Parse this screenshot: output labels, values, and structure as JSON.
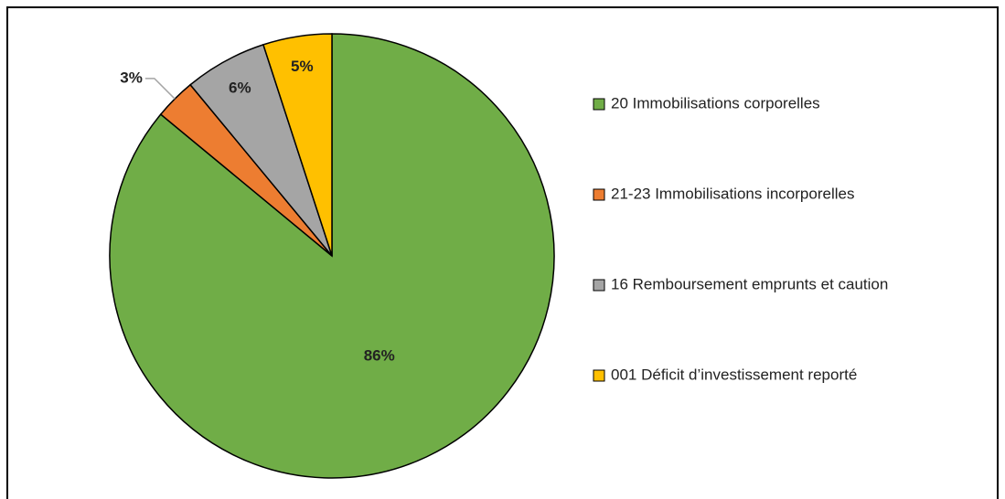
{
  "chart_data": {
    "type": "pie",
    "categories": [
      "20 Immobilisations corporelles",
      "21-23 Immobilisations incorporelles",
      "16 Remboursement emprunts et caution",
      "001 Déficit d’investissement reporté"
    ],
    "values": [
      86,
      3,
      6,
      5
    ],
    "value_labels": [
      "86%",
      "3%",
      "6%",
      "5%"
    ],
    "colors": [
      "#70ad47",
      "#ed7d31",
      "#a5a5a5",
      "#ffc000"
    ],
    "legend": "right"
  }
}
